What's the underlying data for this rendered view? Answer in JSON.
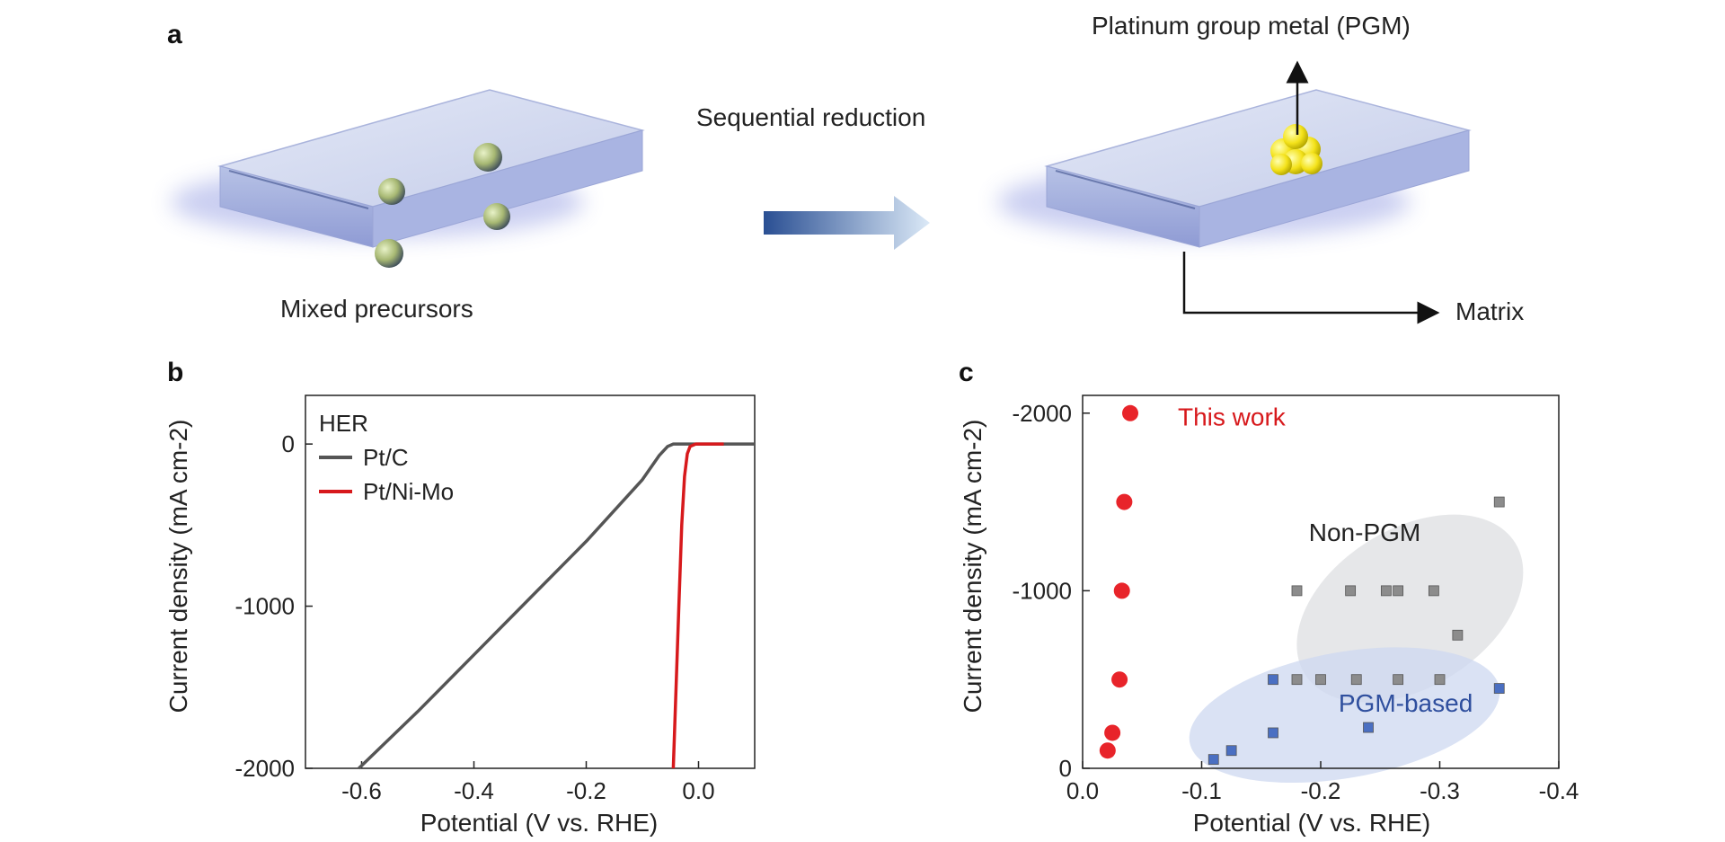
{
  "colors": {
    "ptc": "#555555",
    "ptnimo": "#d7191c",
    "this_work": "#e8242a",
    "this_work_label": "#d7191c",
    "non_pgm_marker": "#8c8c8c",
    "pgm_marker": "#4a6fc2",
    "pgm_label": "#2f4f9e"
  },
  "schematic": {
    "panel_label": "a",
    "left_label": "Mixed precursors",
    "arrow_label": "Sequential reduction",
    "pgm_label": "Platinum group metal (PGM)",
    "matrix_label": "Matrix"
  },
  "chart_data": [
    {
      "panel_label": "b",
      "type": "line",
      "legend_title": "HER",
      "legend_position": "top-left",
      "xlabel": "Potential (V vs. RHE)",
      "ylabel": "Current density (mA cm-2)",
      "xlim": [
        -0.7,
        0.1
      ],
      "ylim": [
        -2000,
        300
      ],
      "xticks": [
        -0.6,
        -0.4,
        -0.2,
        0.0
      ],
      "xtick_labels": [
        "-0.6",
        "-0.4",
        "-0.2",
        "0.0"
      ],
      "yticks": [
        0,
        -1000,
        -2000
      ],
      "ytick_labels": [
        "0",
        "-1000",
        "-2000"
      ],
      "grid": false,
      "series": [
        {
          "name": "Pt/C",
          "color": "#555555",
          "x": [
            -0.605,
            -0.5,
            -0.4,
            -0.3,
            -0.2,
            -0.1,
            -0.07,
            -0.055,
            -0.045,
            0.1
          ],
          "y": [
            -2000,
            -1650,
            -1300,
            -950,
            -600,
            -220,
            -70,
            -15,
            0,
            0
          ]
        },
        {
          "name": "Pt/Ni-Mo",
          "color": "#d7191c",
          "x": [
            -0.045,
            -0.04,
            -0.035,
            -0.03,
            -0.025,
            -0.02,
            -0.015,
            -0.005,
            0.045
          ],
          "y": [
            -2000,
            -1500,
            -1000,
            -500,
            -200,
            -60,
            -15,
            0,
            0
          ]
        }
      ]
    },
    {
      "panel_label": "c",
      "type": "scatter",
      "xlabel": "Potential (V vs. RHE)",
      "ylabel": "Current density (mA cm-2)",
      "xlim": [
        0.0,
        -0.4
      ],
      "ylim": [
        0,
        -2100
      ],
      "xticks": [
        0.0,
        -0.1,
        -0.2,
        -0.3,
        -0.4
      ],
      "xtick_labels": [
        "0.0",
        "-0.1",
        "-0.2",
        "-0.3",
        "-0.4"
      ],
      "yticks": [
        0,
        -1000,
        -2000
      ],
      "ytick_labels": [
        "0",
        "-1000",
        "-2000"
      ],
      "grid": false,
      "annotations": {
        "this_work": "This work",
        "non_pgm": "Non-PGM",
        "pgm": "PGM-based"
      },
      "series": [
        {
          "name": "This work",
          "color": "#e8242a",
          "x": [
            -0.04,
            -0.035,
            -0.033,
            -0.031,
            -0.025,
            -0.021
          ],
          "y": [
            -2000,
            -1500,
            -1000,
            -500,
            -200,
            -100
          ]
        },
        {
          "name": "Non-PGM",
          "color": "#8c8c8c",
          "x": [
            -0.35,
            -0.18,
            -0.225,
            -0.255,
            -0.265,
            -0.295,
            -0.315,
            -0.18,
            -0.2,
            -0.23,
            -0.265,
            -0.3
          ],
          "y": [
            -1500,
            -1000,
            -1000,
            -1000,
            -1000,
            -1000,
            -750,
            -500,
            -500,
            -500,
            -500,
            -500
          ]
        },
        {
          "name": "PGM-based",
          "color": "#4a6fc2",
          "x": [
            -0.11,
            -0.125,
            -0.16,
            -0.16,
            -0.24,
            -0.35
          ],
          "y": [
            -50,
            -100,
            -200,
            -500,
            -230,
            -450
          ]
        }
      ]
    }
  ]
}
